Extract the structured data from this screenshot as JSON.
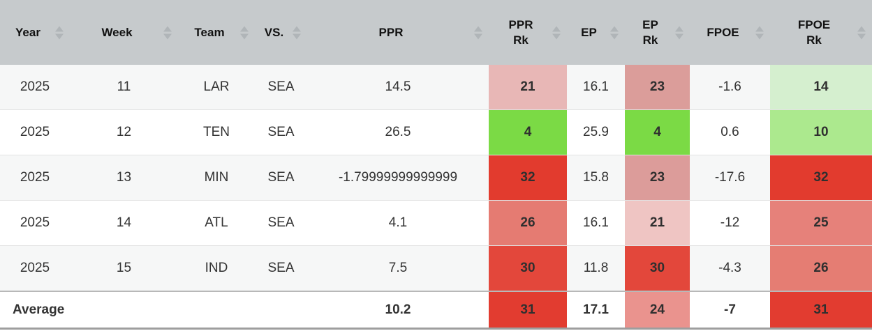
{
  "colors": {
    "header_bg": "#c6cacc",
    "sort_arrow": "#b0b5b8",
    "row_odd_bg": "#f6f7f7",
    "row_even_bg": "#ffffff",
    "row_border": "#e2e2e2",
    "average_top_border": "#b8b8b8",
    "table_bottom_border": "#9e9e9e",
    "header_text": "#121212",
    "body_text": "#333333",
    "rank_green_strong": "#7bda45",
    "rank_red_strong": "#e23b2e"
  },
  "table": {
    "columns": [
      {
        "key": "year",
        "label": "Year",
        "label_lines": [
          "Year"
        ]
      },
      {
        "key": "week",
        "label": "Week",
        "label_lines": [
          "Week"
        ]
      },
      {
        "key": "team",
        "label": "Team",
        "label_lines": [
          "Team"
        ]
      },
      {
        "key": "vs",
        "label": "VS.",
        "label_lines": [
          "VS."
        ]
      },
      {
        "key": "ppr",
        "label": "PPR",
        "label_lines": [
          "PPR"
        ]
      },
      {
        "key": "ppr_rk",
        "label": "PPR Rk",
        "label_lines": [
          "PPR",
          "Rk"
        ]
      },
      {
        "key": "ep",
        "label": "EP",
        "label_lines": [
          "EP"
        ]
      },
      {
        "key": "ep_rk",
        "label": "EP Rk",
        "label_lines": [
          "EP",
          "Rk"
        ]
      },
      {
        "key": "fpoe",
        "label": "FPOE",
        "label_lines": [
          "FPOE"
        ]
      },
      {
        "key": "fpoe_rk",
        "label": "FPOE Rk",
        "label_lines": [
          "FPOE",
          "Rk"
        ]
      }
    ],
    "rows": [
      {
        "cells": {
          "year": "2025",
          "week": "11",
          "team": "LAR",
          "vs": "SEA",
          "ppr": "14.5",
          "ppr_rk": "21",
          "ep": "16.1",
          "ep_rk": "23",
          "fpoe": "-1.6",
          "fpoe_rk": "14"
        },
        "rank_colors": {
          "ppr_rk": "#e8b7b6",
          "ep_rk": "#db9d9a",
          "fpoe_rk": "#d5efcf"
        }
      },
      {
        "cells": {
          "year": "2025",
          "week": "12",
          "team": "TEN",
          "vs": "SEA",
          "ppr": "26.5",
          "ppr_rk": "4",
          "ep": "25.9",
          "ep_rk": "4",
          "fpoe": "0.6",
          "fpoe_rk": "10"
        },
        "rank_colors": {
          "ppr_rk": "#7bda45",
          "ep_rk": "#7bda45",
          "fpoe_rk": "#ace98e"
        }
      },
      {
        "cells": {
          "year": "2025",
          "week": "13",
          "team": "MIN",
          "vs": "SEA",
          "ppr": "-1.79999999999999",
          "ppr_rk": "32",
          "ep": "15.8",
          "ep_rk": "23",
          "fpoe": "-17.6",
          "fpoe_rk": "32"
        },
        "rank_colors": {
          "ppr_rk": "#e23b2e",
          "ep_rk": "#dc9c9a",
          "fpoe_rk": "#e23b2e"
        }
      },
      {
        "cells": {
          "year": "2025",
          "week": "14",
          "team": "ATL",
          "vs": "SEA",
          "ppr": "4.1",
          "ppr_rk": "26",
          "ep": "16.1",
          "ep_rk": "21",
          "fpoe": "-12",
          "fpoe_rk": "25"
        },
        "rank_colors": {
          "ppr_rk": "#e57b72",
          "ep_rk": "#efc5c3",
          "fpoe_rk": "#e6817a"
        }
      },
      {
        "cells": {
          "year": "2025",
          "week": "15",
          "team": "IND",
          "vs": "SEA",
          "ppr": "7.5",
          "ppr_rk": "30",
          "ep": "11.8",
          "ep_rk": "30",
          "fpoe": "-4.3",
          "fpoe_rk": "26"
        },
        "rank_colors": {
          "ppr_rk": "#e3473b",
          "ep_rk": "#e3473b",
          "fpoe_rk": "#e57d73"
        }
      }
    ],
    "average_row": {
      "label": "Average",
      "cells": {
        "year": "Average",
        "week": "",
        "team": "",
        "vs": "",
        "ppr": "10.2",
        "ppr_rk": "31",
        "ep": "17.1",
        "ep_rk": "24",
        "fpoe": "-7",
        "fpoe_rk": "31"
      },
      "rank_colors": {
        "ppr_rk": "#e23c30",
        "ep_rk": "#ea938e",
        "fpoe_rk": "#e23c30"
      }
    }
  }
}
